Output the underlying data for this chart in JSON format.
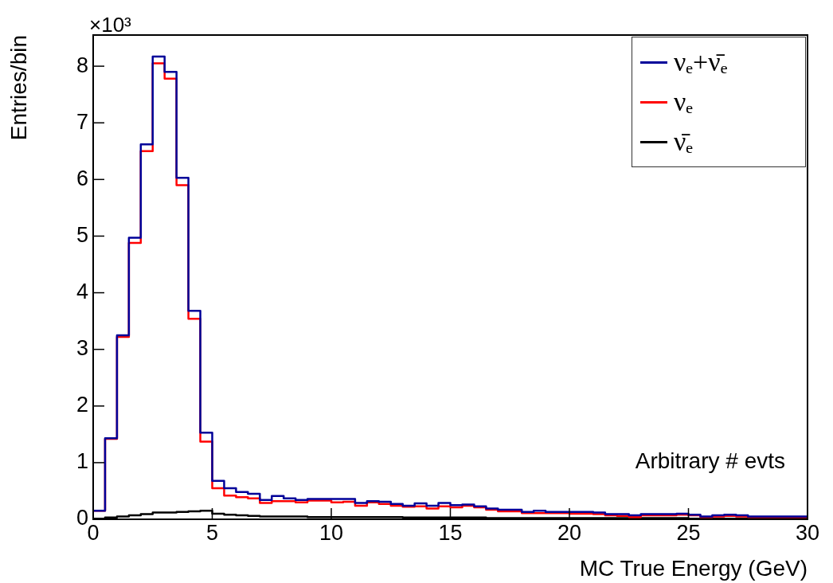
{
  "chart_data": {
    "type": "histogram",
    "xlabel": "MC True Energy (GeV)",
    "ylabel": "Entries/bin",
    "bins": [
      0,
      0.5,
      1,
      1.5,
      2,
      2.5,
      3,
      3.5,
      4,
      4.5,
      5,
      5.5,
      6,
      6.5,
      7,
      7.5,
      8,
      8.5,
      9,
      9.5,
      10,
      10.5,
      11,
      11.5,
      12,
      12.5,
      13,
      13.5,
      14,
      14.5,
      15,
      15.5,
      16,
      16.5,
      17,
      17.5,
      18,
      18.5,
      19,
      19.5,
      20,
      20.5,
      21,
      21.5,
      22,
      22.5,
      23,
      23.5,
      24,
      24.5,
      25,
      25.5,
      26,
      26.5,
      27,
      27.5,
      28,
      28.5,
      29,
      29.5,
      30
    ],
    "series": [
      {
        "name": "νₑ+ν̄ₑ",
        "color": "#000099",
        "values": [
          0.15,
          1.43,
          3.25,
          4.97,
          6.62,
          8.17,
          7.9,
          6.03,
          3.68,
          1.53,
          0.68,
          0.55,
          0.48,
          0.45,
          0.34,
          0.41,
          0.37,
          0.34,
          0.36,
          0.36,
          0.36,
          0.36,
          0.29,
          0.32,
          0.31,
          0.27,
          0.24,
          0.28,
          0.24,
          0.29,
          0.25,
          0.26,
          0.23,
          0.19,
          0.17,
          0.17,
          0.13,
          0.15,
          0.13,
          0.13,
          0.13,
          0.13,
          0.12,
          0.09,
          0.09,
          0.07,
          0.09,
          0.09,
          0.09,
          0.1,
          0.08,
          0.05,
          0.07,
          0.08,
          0.07,
          0.05,
          0.05,
          0.05,
          0.05,
          0.05
        ]
      },
      {
        "name": "νₑ",
        "color": "#ff0000",
        "values": [
          0.15,
          1.42,
          3.22,
          4.88,
          6.5,
          8.05,
          7.78,
          5.9,
          3.54,
          1.37,
          0.55,
          0.42,
          0.39,
          0.37,
          0.29,
          0.32,
          0.32,
          0.3,
          0.33,
          0.33,
          0.3,
          0.31,
          0.24,
          0.3,
          0.27,
          0.24,
          0.22,
          0.23,
          0.19,
          0.23,
          0.21,
          0.24,
          0.21,
          0.17,
          0.14,
          0.14,
          0.11,
          0.11,
          0.11,
          0.11,
          0.1,
          0.1,
          0.09,
          0.07,
          0.06,
          0.04,
          0.07,
          0.07,
          0.07,
          0.08,
          0.07,
          0.04,
          0.05,
          0.06,
          0.05,
          0.04,
          0.04,
          0.04,
          0.04,
          0.04
        ]
      },
      {
        "name": "ν̄ₑ",
        "color": "#000000",
        "values": [
          0.01,
          0.03,
          0.05,
          0.07,
          0.09,
          0.12,
          0.12,
          0.13,
          0.14,
          0.15,
          0.1,
          0.08,
          0.07,
          0.06,
          0.05,
          0.05,
          0.05,
          0.05,
          0.04,
          0.04,
          0.04,
          0.04,
          0.04,
          0.04,
          0.04,
          0.04,
          0.03,
          0.03,
          0.03,
          0.03,
          0.03,
          0.03,
          0.03,
          0.02,
          0.02,
          0.02,
          0.02,
          0.02,
          0.02,
          0.02,
          0.02,
          0.02,
          0.02,
          0.02,
          0.02,
          0.02,
          0.02,
          0.02,
          0.02,
          0.02,
          0.01,
          0.01,
          0.01,
          0.01,
          0.01,
          0.01,
          0.01,
          0.01,
          0.01,
          0.01
        ]
      }
    ],
    "xlim": [
      0,
      30
    ],
    "xticks": [
      0,
      5,
      10,
      15,
      20,
      25,
      30
    ],
    "ylim": [
      0,
      8.55
    ],
    "yticks": [
      0,
      1,
      2,
      3,
      4,
      5,
      6,
      7,
      8
    ],
    "legend": "top right",
    "annotations": [
      "×10³",
      "Arbitrary # evts"
    ]
  }
}
